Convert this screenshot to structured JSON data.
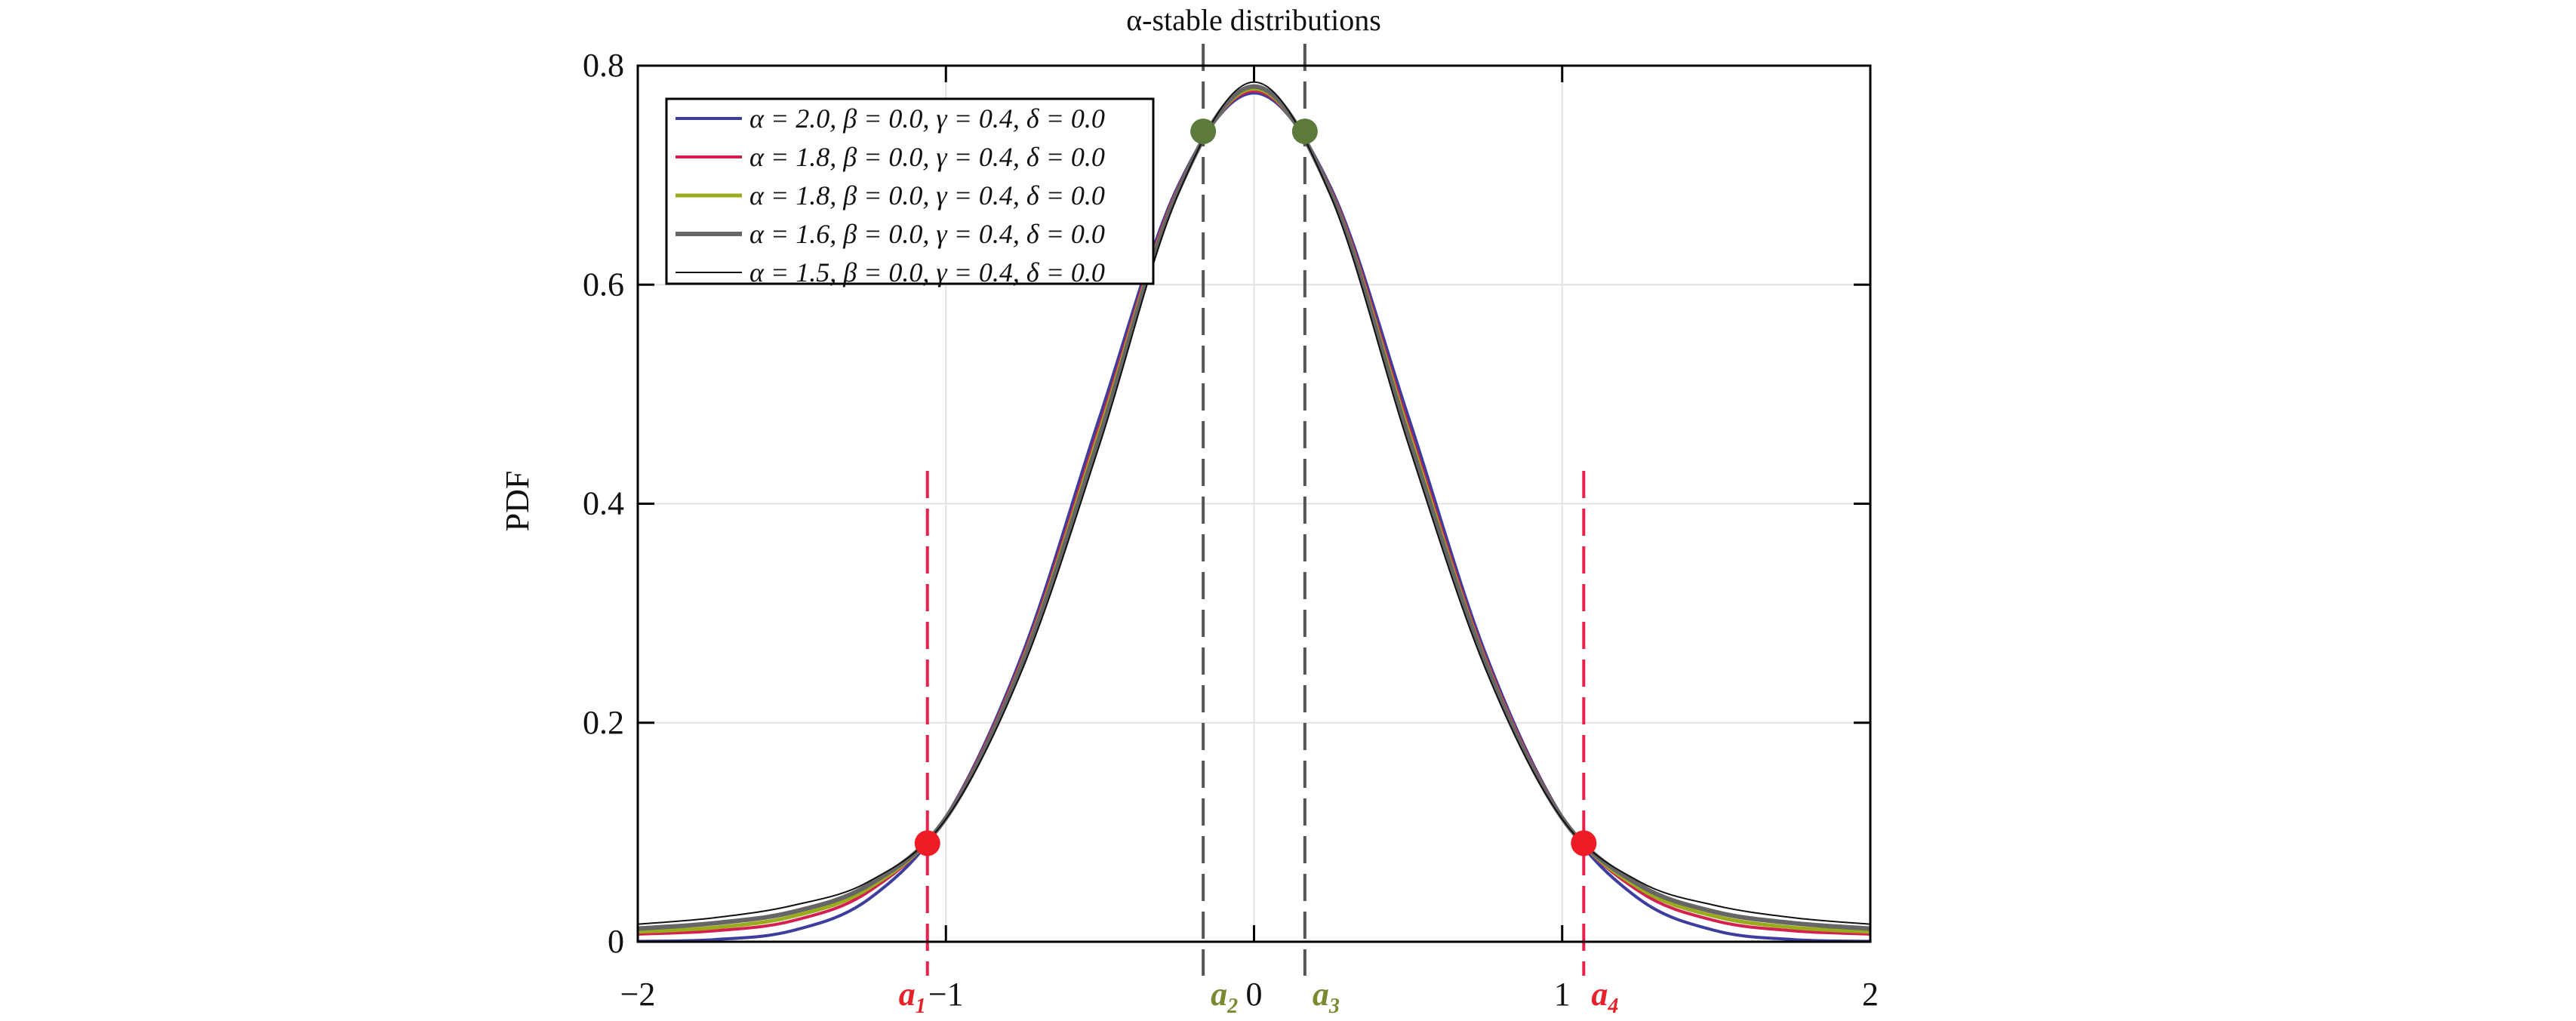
{
  "chart_data": {
    "type": "line",
    "title": "α-stable distributions",
    "xlabel": "",
    "ylabel": "PDF",
    "xlim": [
      -2,
      2
    ],
    "ylim": [
      0,
      0.8
    ],
    "xticks": [
      "-2",
      "-1",
      "0",
      "1",
      "2"
    ],
    "yticks": [
      "0",
      "0.2",
      "0.4",
      "0.6",
      "0.8"
    ],
    "grid": true,
    "legend_position": "top-left",
    "x": [
      0,
      0.25,
      0.5,
      0.75,
      1.0,
      1.25,
      1.5,
      1.75,
      2.0
    ],
    "series": [
      {
        "name": "α = 2.0, β = 0.0, γ = 0.4, δ = 0.0",
        "color": "#3d3d9e",
        "values": [
          0.775,
          0.688,
          0.48,
          0.264,
          0.114,
          0.039,
          0.01,
          0.002,
          0.0004
        ]
      },
      {
        "name": "α = 1.8, β = 0.0, γ = 0.4, δ = 0.0",
        "color": "#d42050",
        "values": [
          0.777,
          0.686,
          0.472,
          0.26,
          0.114,
          0.046,
          0.019,
          0.01,
          0.007
        ]
      },
      {
        "name": "α = 1.8, β = 0.0, γ = 0.4, δ = 0.0",
        "color": "#9aab1c",
        "values": [
          0.779,
          0.684,
          0.467,
          0.257,
          0.113,
          0.049,
          0.023,
          0.013,
          0.009
        ]
      },
      {
        "name": "α = 1.6, β = 0.0, γ = 0.4, δ = 0.0",
        "color": "#666666",
        "values": [
          0.781,
          0.683,
          0.462,
          0.255,
          0.113,
          0.052,
          0.027,
          0.017,
          0.012
        ]
      },
      {
        "name": "α = 1.5, β = 0.0, γ = 0.4, δ = 0.0",
        "color": "#111111",
        "values": [
          0.785,
          0.68,
          0.455,
          0.25,
          0.112,
          0.055,
          0.033,
          0.022,
          0.016
        ]
      }
    ],
    "symmetric_about_zero": true,
    "markers": [
      {
        "label": "a",
        "sub": "1",
        "x": -1.06,
        "y": 0.09,
        "color": "#ee1c25",
        "line_top": 0.43
      },
      {
        "label": "a",
        "sub": "2",
        "x": -0.165,
        "y": 0.74,
        "color": "#5b7a3c",
        "line_top": 0.82
      },
      {
        "label": "a",
        "sub": "3",
        "x": 0.165,
        "y": 0.74,
        "color": "#5b7a3c",
        "line_top": 0.82
      },
      {
        "label": "a",
        "sub": "4",
        "x": 1.07,
        "y": 0.09,
        "color": "#ee1c25",
        "line_top": 0.43
      }
    ],
    "marker_label_colors": {
      "red": "#e8202a",
      "olive": "#7a8a30"
    }
  }
}
